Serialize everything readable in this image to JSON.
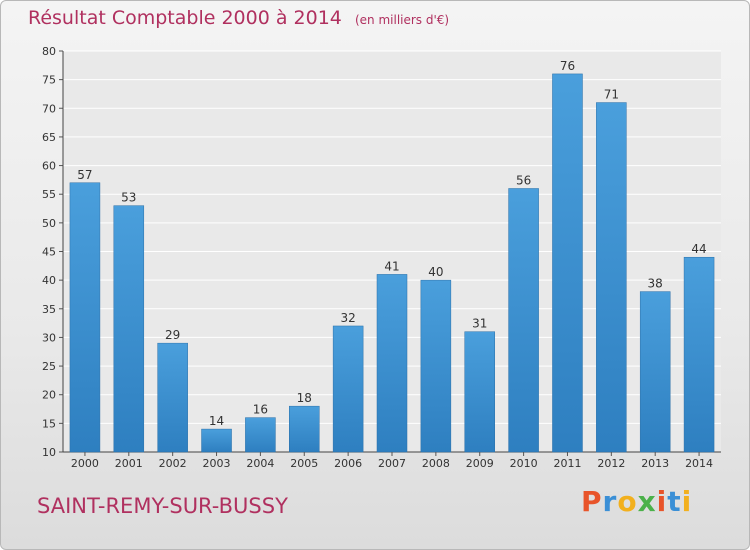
{
  "header": {
    "title": "Résultat Comptable 2000 à 2014",
    "subtitle": "(en milliers d'€)"
  },
  "footer": {
    "commune": "SAINT-REMY-SUR-BUSSY",
    "logo_text": "Proxiti"
  },
  "colors": {
    "bar": "#4a9fdc",
    "bar_dark": "#2e7fc0",
    "title": "#b0305f",
    "logo_letters": [
      "#e8542a",
      "#3a8fd6",
      "#f2b01e",
      "#4bb14a",
      "#e8542a",
      "#3a8fd6",
      "#f2b01e"
    ]
  },
  "chart_data": {
    "type": "bar",
    "title": "Résultat Comptable 2000 à 2014",
    "subtitle": "(en milliers d'€)",
    "categories": [
      "2000",
      "2001",
      "2002",
      "2003",
      "2004",
      "2005",
      "2006",
      "2007",
      "2008",
      "2009",
      "2010",
      "2011",
      "2012",
      "2013",
      "2014"
    ],
    "values": [
      57,
      53,
      29,
      14,
      16,
      18,
      32,
      41,
      40,
      31,
      56,
      76,
      71,
      38,
      44
    ],
    "data_labels": [
      "57",
      "53",
      "29",
      "14",
      "16",
      "18",
      "32",
      "41",
      "40",
      "31",
      "56",
      "76",
      "71",
      "38",
      "44"
    ],
    "ylim": [
      10,
      80
    ],
    "yticks": [
      10,
      15,
      20,
      25,
      30,
      35,
      40,
      45,
      50,
      55,
      60,
      65,
      70,
      75,
      80
    ],
    "xlabel": "",
    "ylabel": "",
    "grid": true
  }
}
